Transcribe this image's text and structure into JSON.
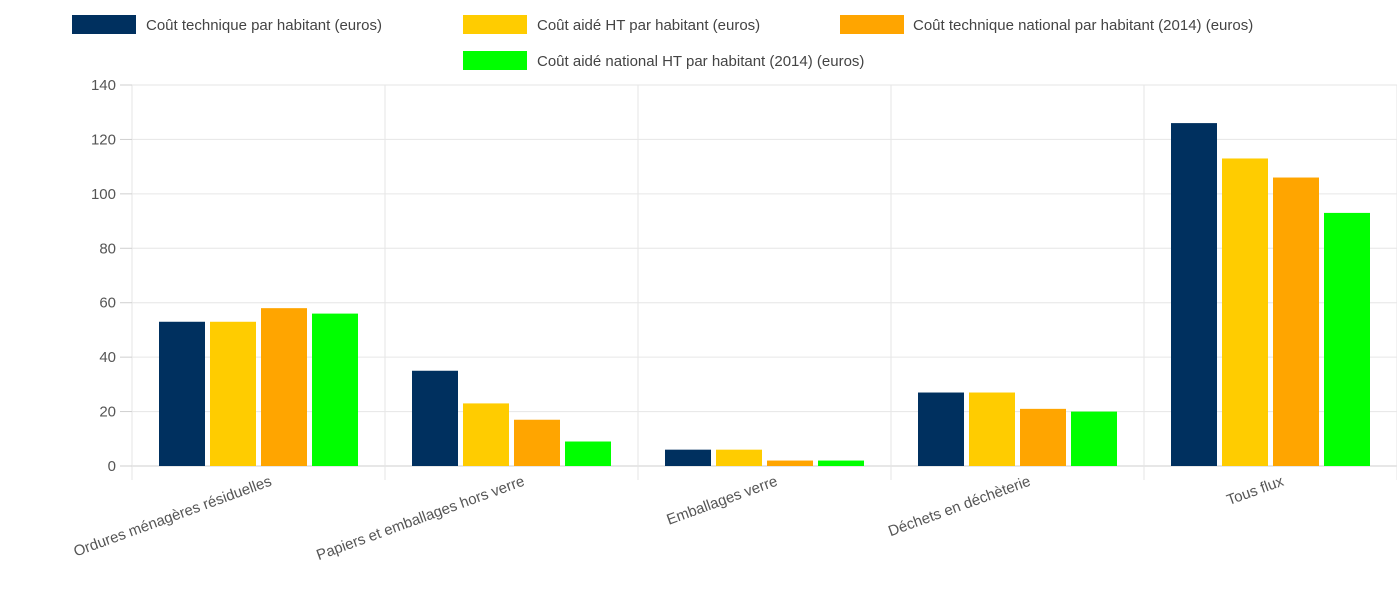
{
  "chart_data": {
    "type": "bar",
    "categories": [
      "Ordures ménagères résiduelles",
      "Papiers et emballages hors verre",
      "Emballages verre",
      "Déchets en déchèterie",
      "Tous flux"
    ],
    "series": [
      {
        "name": "Coût technique par habitant (euros)",
        "color": "#00305f",
        "values": [
          53,
          35,
          6,
          27,
          126
        ]
      },
      {
        "name": "Coût aidé HT par habitant (euros)",
        "color": "#ffcc00",
        "values": [
          53,
          23,
          6,
          27,
          113
        ]
      },
      {
        "name": "Coût technique national par habitant (2014) (euros)",
        "color": "#ffa500",
        "values": [
          58,
          17,
          2,
          21,
          106
        ]
      },
      {
        "name": "Coût aidé national HT par habitant (2014) (euros)",
        "color": "#00ff00",
        "values": [
          56,
          9,
          2,
          20,
          93
        ]
      }
    ],
    "y_ticks": [
      "0",
      "20",
      "40",
      "60",
      "80",
      "100",
      "120",
      "140"
    ],
    "ylim": [
      0,
      140
    ],
    "xlabel": "",
    "ylabel": "",
    "grid": true,
    "legend_position": "top-center"
  }
}
